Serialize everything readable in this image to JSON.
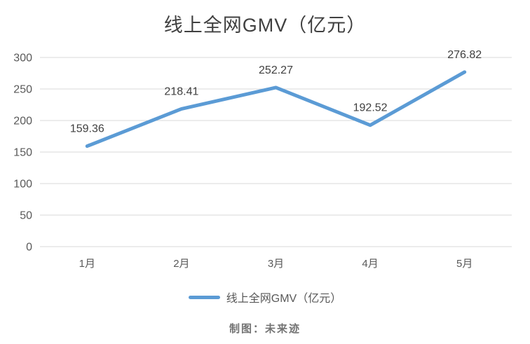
{
  "title": "线上全网GMV（亿元）",
  "chart_data": {
    "type": "line",
    "title": "线上全网GMV（亿元）",
    "categories": [
      "1月",
      "2月",
      "3月",
      "4月",
      "5月"
    ],
    "series": [
      {
        "name": "线上全网GMV（亿元）",
        "values": [
          159.36,
          218.41,
          252.27,
          192.52,
          276.82
        ]
      }
    ],
    "data_labels": [
      "159.36",
      "218.41",
      "252.27",
      "192.52",
      "276.82"
    ],
    "xlabel": "",
    "ylabel": "",
    "ylim": [
      0,
      300
    ],
    "ytick_step": 50,
    "ytick_labels": [
      "0",
      "50",
      "100",
      "150",
      "200",
      "250",
      "300"
    ],
    "grid": true,
    "legend_position": "bottom"
  },
  "legend": {
    "label": "线上全网GMV（亿元）"
  },
  "footer": {
    "credit": "制图：未来迹"
  },
  "colors": {
    "line": "#5B9BD5",
    "grid": "#D9D9D9",
    "axis_text": "#595959",
    "label_text": "#404040",
    "title_text": "#404040",
    "footer_text": "#737373",
    "background": "#FFFFFF"
  }
}
